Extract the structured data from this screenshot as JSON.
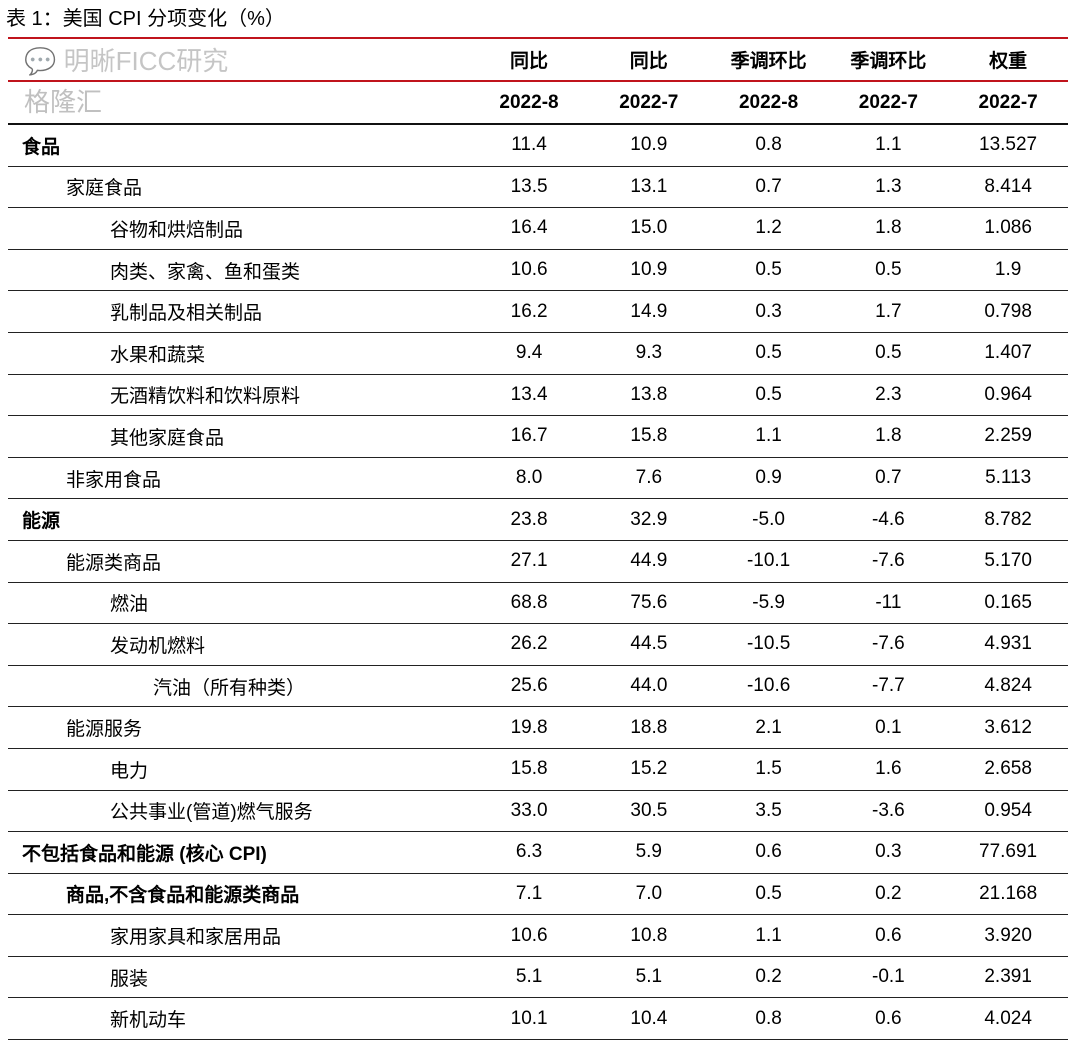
{
  "title": "表 1：美国 CPI 分项变化（%）",
  "header": {
    "row1": [
      "同比",
      "同比",
      "季调环比",
      "季调环比",
      "权重"
    ],
    "row2": [
      "2022-8",
      "2022-7",
      "2022-8",
      "2022-7",
      "2022-7"
    ]
  },
  "rows": [
    {
      "label": "食品",
      "level": 0,
      "bold": true,
      "values": [
        "11.4",
        "10.9",
        "0.8",
        "1.1",
        "13.527"
      ]
    },
    {
      "label": "家庭食品",
      "level": 1,
      "values": [
        "13.5",
        "13.1",
        "0.7",
        "1.3",
        "8.414"
      ]
    },
    {
      "label": "谷物和烘焙制品",
      "level": 2,
      "values": [
        "16.4",
        "15.0",
        "1.2",
        "1.8",
        "1.086"
      ]
    },
    {
      "label": "肉类、家禽、鱼和蛋类",
      "level": 2,
      "values": [
        "10.6",
        "10.9",
        "0.5",
        "0.5",
        "1.9"
      ]
    },
    {
      "label": "乳制品及相关制品",
      "level": 2,
      "values": [
        "16.2",
        "14.9",
        "0.3",
        "1.7",
        "0.798"
      ]
    },
    {
      "label": "水果和蔬菜",
      "level": 2,
      "values": [
        "9.4",
        "9.3",
        "0.5",
        "0.5",
        "1.407"
      ]
    },
    {
      "label": "无酒精饮料和饮料原料",
      "level": 2,
      "values": [
        "13.4",
        "13.8",
        "0.5",
        "2.3",
        "0.964"
      ]
    },
    {
      "label": "其他家庭食品",
      "level": 2,
      "values": [
        "16.7",
        "15.8",
        "1.1",
        "1.8",
        "2.259"
      ]
    },
    {
      "label": "非家用食品",
      "level": 1,
      "values": [
        "8.0",
        "7.6",
        "0.9",
        "0.7",
        "5.113"
      ]
    },
    {
      "label": "能源",
      "level": 0,
      "bold": true,
      "values": [
        "23.8",
        "32.9",
        "-5.0",
        "-4.6",
        "8.782"
      ]
    },
    {
      "label": "能源类商品",
      "level": 1,
      "values": [
        "27.1",
        "44.9",
        "-10.1",
        "-7.6",
        "5.170"
      ]
    },
    {
      "label": "燃油",
      "level": 2,
      "values": [
        "68.8",
        "75.6",
        "-5.9",
        "-11",
        "0.165"
      ]
    },
    {
      "label": "发动机燃料",
      "level": 2,
      "values": [
        "26.2",
        "44.5",
        "-10.5",
        "-7.6",
        "4.931"
      ]
    },
    {
      "label": "汽油（所有种类）",
      "level": 3,
      "values": [
        "25.6",
        "44.0",
        "-10.6",
        "-7.7",
        "4.824"
      ]
    },
    {
      "label": "能源服务",
      "level": 1,
      "values": [
        "19.8",
        "18.8",
        "2.1",
        "0.1",
        "3.612"
      ]
    },
    {
      "label": "电力",
      "level": 2,
      "values": [
        "15.8",
        "15.2",
        "1.5",
        "1.6",
        "2.658"
      ]
    },
    {
      "label": "公共事业(管道)燃气服务",
      "level": 2,
      "values": [
        "33.0",
        "30.5",
        "3.5",
        "-3.6",
        "0.954"
      ]
    },
    {
      "label": "不包括食品和能源 (核心 CPI)",
      "level": 0,
      "bold": true,
      "values": [
        "6.3",
        "5.9",
        "0.6",
        "0.3",
        "77.691"
      ]
    },
    {
      "label": "商品,不含食品和能源类商品",
      "level": 1,
      "bold": true,
      "values": [
        "7.1",
        "7.0",
        "0.5",
        "0.2",
        "21.168"
      ]
    },
    {
      "label": "家用家具和家居用品",
      "level": 2,
      "values": [
        "10.6",
        "10.8",
        "1.1",
        "0.6",
        "3.920"
      ]
    },
    {
      "label": "服装",
      "level": 2,
      "values": [
        "5.1",
        "5.1",
        "0.2",
        "-0.1",
        "2.391"
      ]
    },
    {
      "label": "新机动车",
      "level": 2,
      "values": [
        "10.1",
        "10.4",
        "0.8",
        "0.6",
        "4.024"
      ]
    }
  ],
  "watermark": {
    "text1": "明晰FICC研究",
    "text2": "格隆汇"
  }
}
